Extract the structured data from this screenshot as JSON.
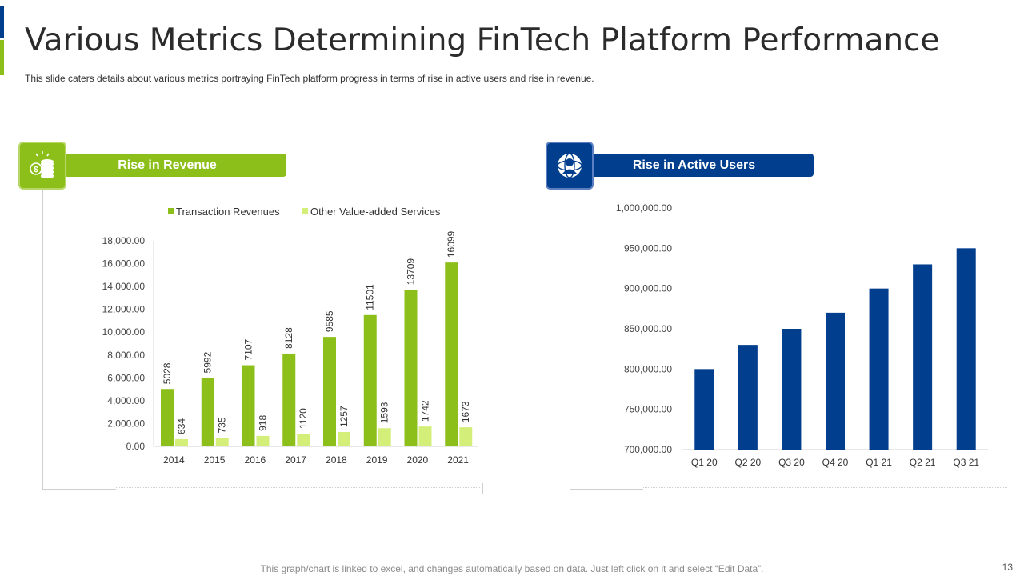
{
  "title": "Various Metrics Determining FinTech Platform Performance",
  "subtitle": "This slide caters details about various  metrics portraying FinTech platform progress in terms of rise in active users and rise in revenue.",
  "colors": {
    "green": "#8dbf1a",
    "light_green": "#d4ee7a",
    "blue": "#013e8e"
  },
  "panels": {
    "revenue": {
      "label": "Rise in Revenue",
      "icon": "money-coins-icon"
    },
    "users": {
      "label": "Rise in Active Users",
      "icon": "user-globe-icon"
    }
  },
  "chart_data": [
    {
      "type": "bar",
      "categories": [
        "2014",
        "2015",
        "2016",
        "2017",
        "2018",
        "2019",
        "2020",
        "2021"
      ],
      "series": [
        {
          "name": "Transaction Revenues",
          "values": [
            5028,
            5992,
            7107,
            8128,
            9585,
            11501,
            13709,
            16099
          ]
        },
        {
          "name": "Other Value-added Services",
          "values": [
            634,
            735,
            918,
            1120,
            1257,
            1593,
            1742,
            1673
          ]
        }
      ],
      "yticks": [
        "0.00",
        "2,000.00",
        "4,000.00",
        "6,000.00",
        "8,000.00",
        "10,000.00",
        "12,000.00",
        "14,000.00",
        "16,000.00",
        "18,000.00"
      ],
      "ylim": [
        0,
        18000
      ],
      "legend": "top",
      "data_labels": true,
      "grid": false
    },
    {
      "type": "bar",
      "categories": [
        "Q1 20",
        "Q2 20",
        "Q3 20",
        "Q4 20",
        "Q1 21",
        "Q2 21",
        "Q3 21"
      ],
      "series": [
        {
          "name": "Active Users",
          "values": [
            800000,
            830000,
            850000,
            870000,
            900000,
            930000,
            950000
          ]
        }
      ],
      "yticks": [
        "700,000.00",
        "750,000.00",
        "800,000.00",
        "850,000.00",
        "900,000.00",
        "950,000.00",
        "1,000,000.00"
      ],
      "ylim": [
        700000,
        1000000
      ],
      "legend": "none",
      "data_labels": false,
      "grid": false
    }
  ],
  "footer": "This graph/chart is linked to excel, and changes automatically based on data. Just left click on it and select “Edit Data”.",
  "page_number": "13"
}
